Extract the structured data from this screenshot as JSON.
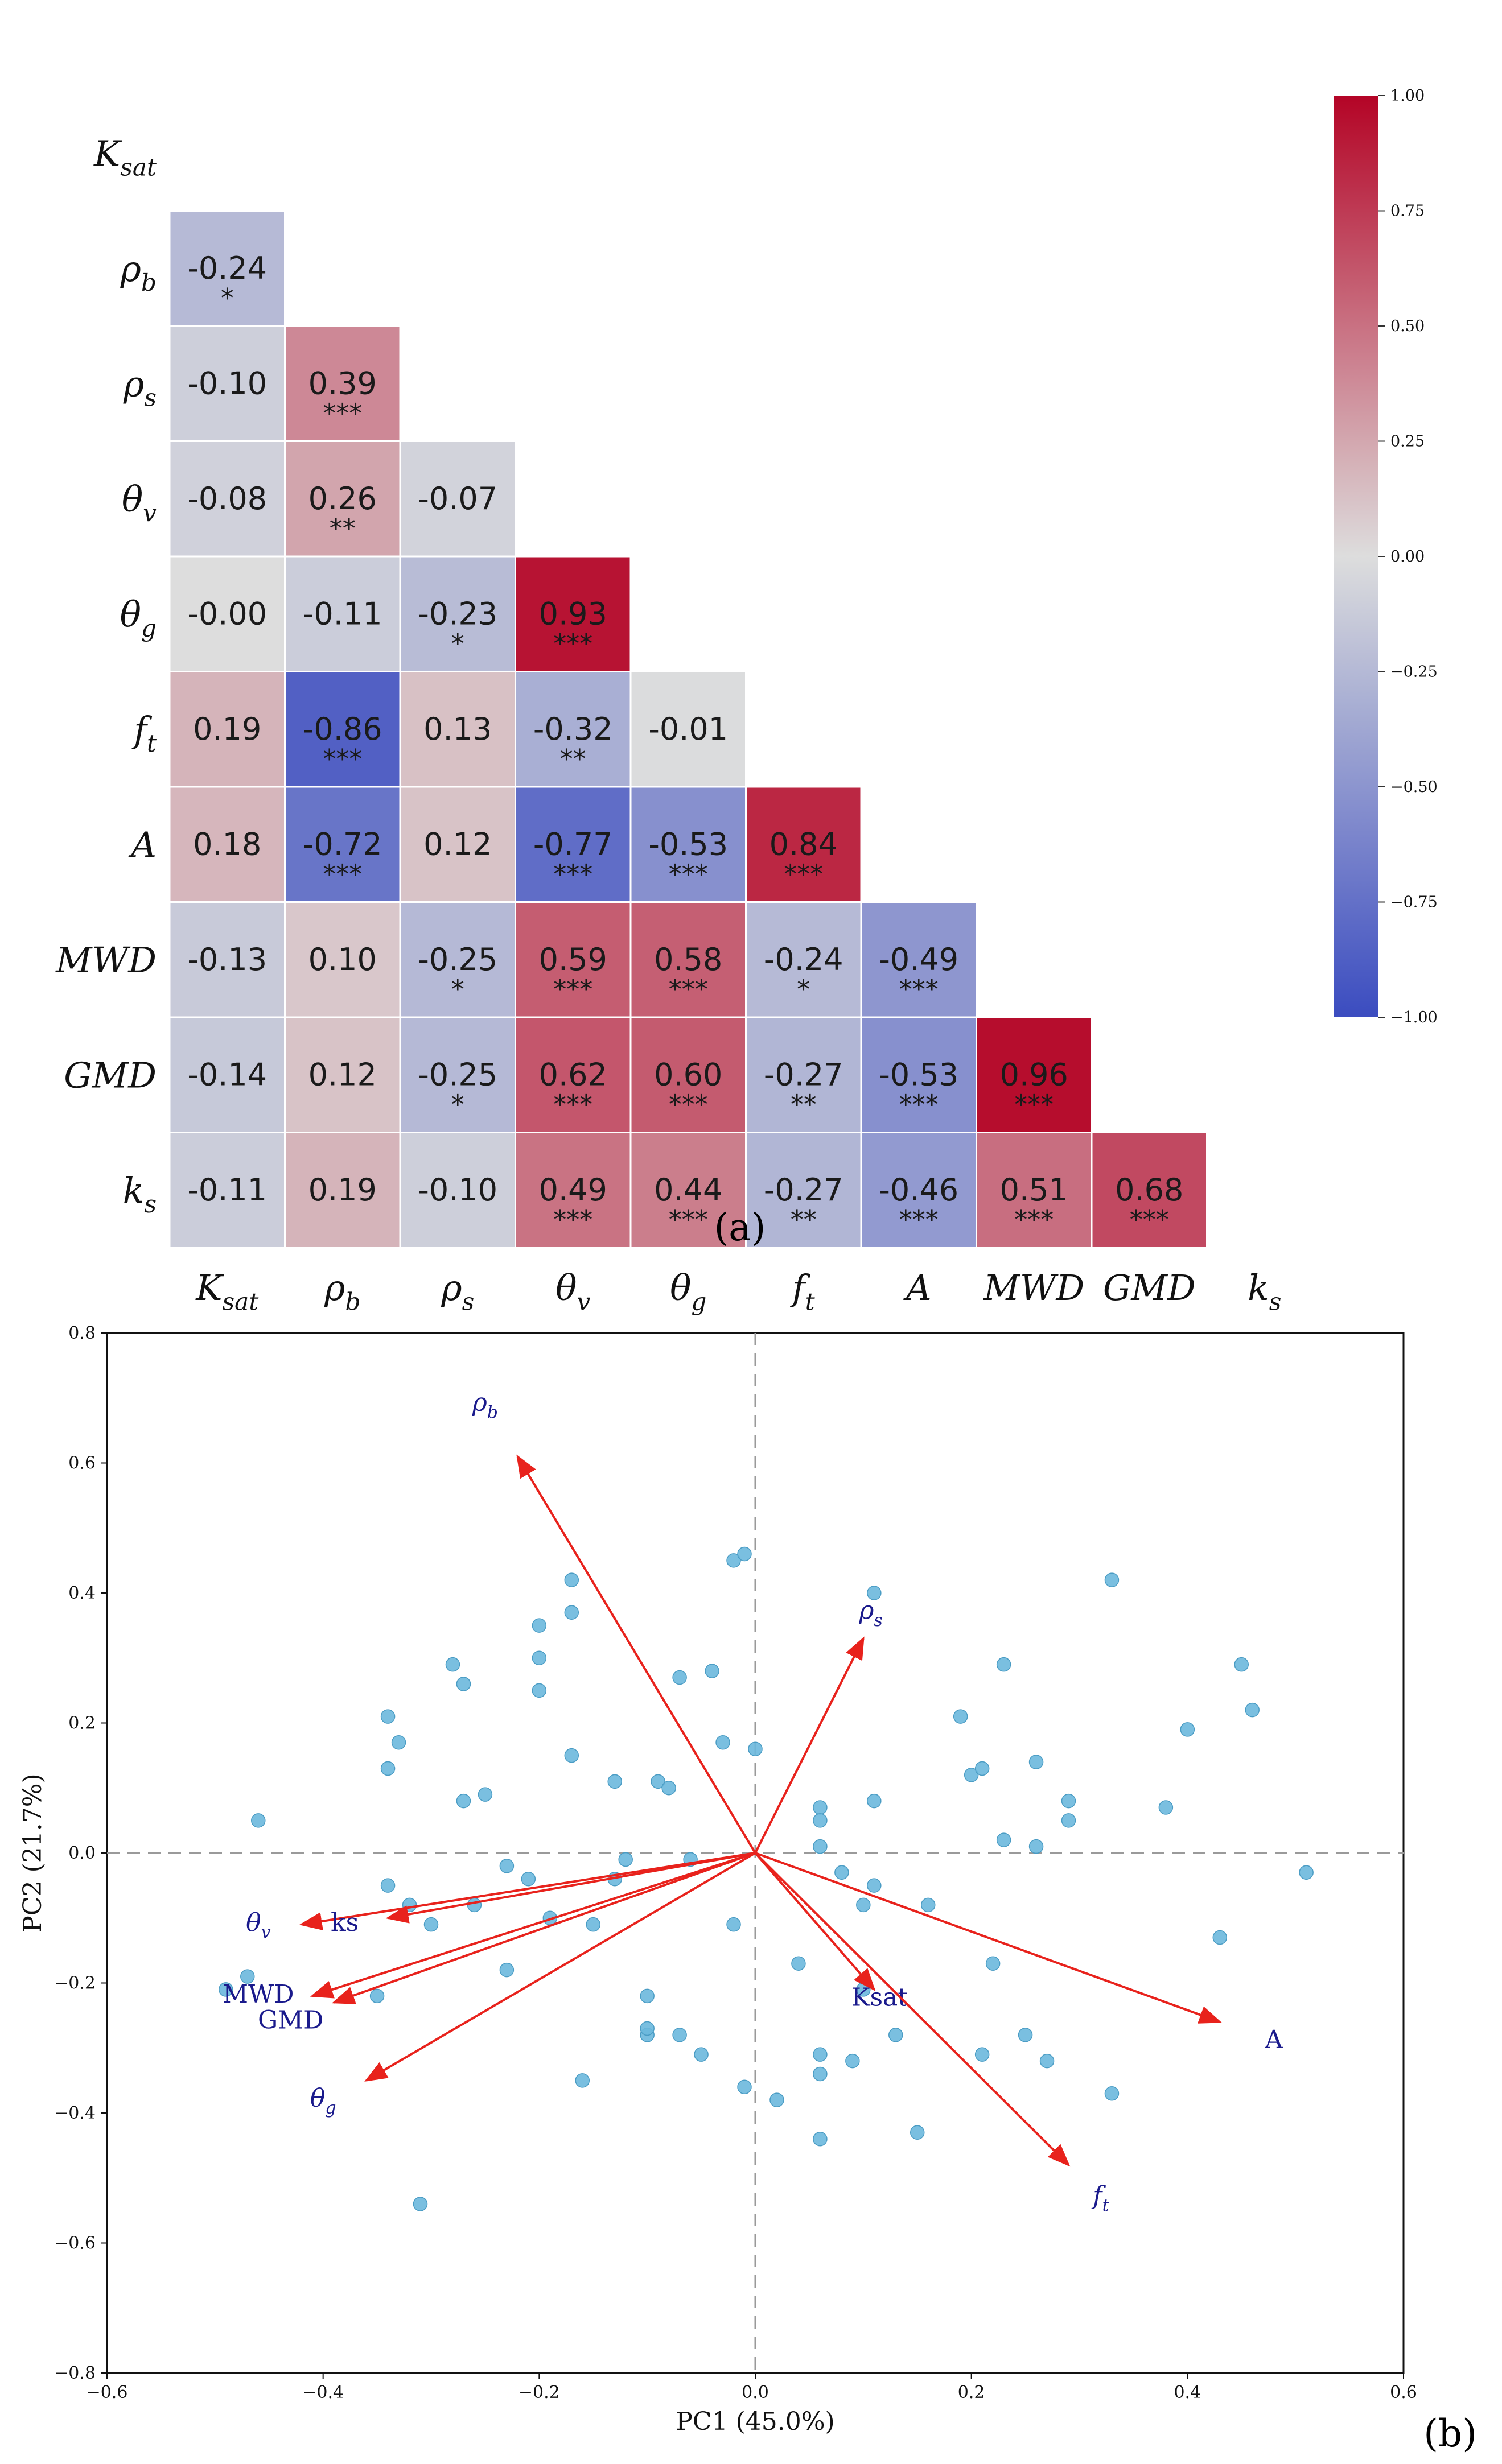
{
  "chart_data": [
    {
      "type": "heatmap",
      "variables": [
        "K_sat",
        "ρ_b",
        "ρ_s",
        "θ_v",
        "θ_g",
        "f_t",
        "A",
        "MWD",
        "GMD",
        "k_s"
      ],
      "matrix": [
        [],
        [
          -0.24
        ],
        [
          -0.1,
          0.39
        ],
        [
          -0.08,
          0.26,
          -0.07
        ],
        [
          -0.0,
          -0.11,
          -0.23,
          0.93
        ],
        [
          0.19,
          -0.86,
          0.13,
          -0.32,
          -0.01
        ],
        [
          0.18,
          -0.72,
          0.12,
          -0.77,
          -0.53,
          0.84
        ],
        [
          -0.13,
          0.1,
          -0.25,
          0.59,
          0.58,
          -0.24,
          -0.49
        ],
        [
          -0.14,
          0.12,
          -0.25,
          0.62,
          0.6,
          -0.27,
          -0.53,
          0.96
        ],
        [
          -0.11,
          0.19,
          -0.1,
          0.49,
          0.44,
          -0.27,
          -0.46,
          0.51,
          0.68
        ]
      ],
      "labels_text": [
        [],
        [
          "-0.24"
        ],
        [
          "-0.10",
          "0.39"
        ],
        [
          "-0.08",
          "0.26",
          "-0.07"
        ],
        [
          "-0.00",
          "-0.11",
          "-0.23",
          "0.93"
        ],
        [
          "0.19",
          "-0.86",
          "0.13",
          "-0.32",
          "-0.01"
        ],
        [
          "0.18",
          "-0.72",
          "0.12",
          "-0.77",
          "-0.53",
          "0.84"
        ],
        [
          "-0.13",
          "0.10",
          "-0.25",
          "0.59",
          "0.58",
          "-0.24",
          "-0.49"
        ],
        [
          "-0.14",
          "0.12",
          "-0.25",
          "0.62",
          "0.60",
          "-0.27",
          "-0.53",
          "0.96"
        ],
        [
          "-0.11",
          "0.19",
          "-0.10",
          "0.49",
          "0.44",
          "-0.27",
          "-0.46",
          "0.51",
          "0.68"
        ]
      ],
      "significance": [
        [],
        [
          "*"
        ],
        [
          "",
          "***"
        ],
        [
          "",
          "**",
          ""
        ],
        [
          "",
          "",
          "*",
          "***"
        ],
        [
          "",
          "***",
          "",
          "**",
          ""
        ],
        [
          "",
          "***",
          "",
          "***",
          "***",
          "***"
        ],
        [
          "",
          "",
          "*",
          "***",
          "***",
          "*",
          "***"
        ],
        [
          "",
          "",
          "*",
          "***",
          "***",
          "**",
          "***",
          "***"
        ],
        [
          "",
          "",
          "",
          "***",
          "***",
          "**",
          "***",
          "***",
          "***"
        ]
      ],
      "colorbar": {
        "range": [
          -1.0,
          1.0
        ],
        "ticks": [
          "1.00",
          "0.75",
          "0.50",
          "0.25",
          "0.00",
          "−0.25",
          "−0.50",
          "−0.75",
          "−1.00"
        ],
        "tick_values": [
          1.0,
          0.75,
          0.5,
          0.25,
          0.0,
          -0.25,
          -0.5,
          -0.75,
          -1.0
        ],
        "colormap": "coolwarm",
        "color_low": "#3b4cc0",
        "color_mid": "#dddddd",
        "color_high": "#b40426"
      },
      "panel_label": "(a)"
    },
    {
      "type": "scatter",
      "xlabel": "PC1 (45.0%)",
      "ylabel": "PC2 (21.7%)",
      "xlim": [
        -0.6,
        0.6
      ],
      "ylim": [
        -0.8,
        0.8
      ],
      "xticks": [
        "−0.6",
        "−0.4",
        "−0.2",
        "0.0",
        "0.2",
        "0.4",
        "0.6"
      ],
      "xtick_values": [
        -0.6,
        -0.4,
        -0.2,
        0.0,
        0.2,
        0.4,
        0.6
      ],
      "yticks": [
        "0.8",
        "0.6",
        "0.4",
        "0.2",
        "0.0",
        "−0.2",
        "−0.4",
        "−0.6",
        "−0.8"
      ],
      "ytick_values": [
        0.8,
        0.6,
        0.4,
        0.2,
        0.0,
        -0.2,
        -0.4,
        -0.6,
        -0.8
      ],
      "point_color": "#6bb8dd",
      "arrow_color": "#e8221c",
      "reference_lines": "dashed at x=0 and y=0",
      "points": [
        [
          -0.49,
          -0.21
        ],
        [
          -0.47,
          -0.19
        ],
        [
          -0.46,
          0.05
        ],
        [
          -0.35,
          -0.22
        ],
        [
          -0.34,
          -0.05
        ],
        [
          -0.34,
          0.21
        ],
        [
          -0.33,
          0.17
        ],
        [
          -0.34,
          0.13
        ],
        [
          -0.32,
          -0.08
        ],
        [
          -0.31,
          -0.54
        ],
        [
          -0.3,
          -0.11
        ],
        [
          -0.28,
          0.29
        ],
        [
          -0.27,
          0.26
        ],
        [
          -0.27,
          0.08
        ],
        [
          -0.26,
          -0.08
        ],
        [
          -0.25,
          0.09
        ],
        [
          -0.23,
          -0.02
        ],
        [
          -0.23,
          -0.18
        ],
        [
          -0.21,
          -0.04
        ],
        [
          -0.2,
          0.35
        ],
        [
          -0.2,
          0.3
        ],
        [
          -0.2,
          0.25
        ],
        [
          -0.19,
          -0.1
        ],
        [
          -0.17,
          0.42
        ],
        [
          -0.17,
          0.37
        ],
        [
          -0.16,
          -0.35
        ],
        [
          -0.17,
          0.15
        ],
        [
          -0.15,
          -0.11
        ],
        [
          -0.13,
          -0.04
        ],
        [
          -0.13,
          0.11
        ],
        [
          -0.12,
          -0.01
        ],
        [
          -0.1,
          -0.22
        ],
        [
          -0.1,
          -0.28
        ],
        [
          -0.1,
          -0.27
        ],
        [
          -0.09,
          0.11
        ],
        [
          -0.08,
          0.1
        ],
        [
          -0.07,
          -0.28
        ],
        [
          -0.07,
          0.27
        ],
        [
          -0.06,
          -0.01
        ],
        [
          -0.05,
          -0.31
        ],
        [
          -0.04,
          0.28
        ],
        [
          -0.03,
          0.17
        ],
        [
          -0.02,
          -0.11
        ],
        [
          -0.02,
          0.45
        ],
        [
          -0.01,
          -0.36
        ],
        [
          -0.01,
          0.46
        ],
        [
          0.0,
          0.16
        ],
        [
          0.02,
          -0.38
        ],
        [
          0.04,
          -0.17
        ],
        [
          0.06,
          0.07
        ],
        [
          0.06,
          0.05
        ],
        [
          0.06,
          -0.34
        ],
        [
          0.06,
          -0.44
        ],
        [
          0.06,
          0.01
        ],
        [
          0.06,
          -0.31
        ],
        [
          0.08,
          -0.03
        ],
        [
          0.09,
          -0.32
        ],
        [
          0.1,
          -0.21
        ],
        [
          0.1,
          -0.08
        ],
        [
          0.11,
          -0.05
        ],
        [
          0.11,
          0.4
        ],
        [
          0.11,
          0.08
        ],
        [
          0.13,
          -0.28
        ],
        [
          0.15,
          -0.43
        ],
        [
          0.16,
          -0.08
        ],
        [
          0.19,
          0.21
        ],
        [
          0.2,
          0.12
        ],
        [
          0.21,
          0.13
        ],
        [
          0.21,
          -0.31
        ],
        [
          0.22,
          -0.17
        ],
        [
          0.23,
          0.29
        ],
        [
          0.23,
          0.02
        ],
        [
          0.25,
          -0.28
        ],
        [
          0.26,
          0.14
        ],
        [
          0.26,
          0.01
        ],
        [
          0.27,
          -0.32
        ],
        [
          0.29,
          0.08
        ],
        [
          0.29,
          0.05
        ],
        [
          0.33,
          0.42
        ],
        [
          0.33,
          -0.37
        ],
        [
          0.38,
          0.07
        ],
        [
          0.4,
          0.19
        ],
        [
          0.43,
          -0.13
        ],
        [
          0.45,
          0.29
        ],
        [
          0.46,
          0.22
        ],
        [
          0.51,
          -0.03
        ]
      ],
      "vectors": [
        {
          "label": "ρ_b",
          "x": -0.22,
          "y": 0.61,
          "italic": true,
          "label_x": -0.25,
          "label_y": 0.68
        },
        {
          "label": "ρ_s",
          "x": 0.1,
          "y": 0.33,
          "italic": true,
          "label_x": 0.107,
          "label_y": 0.36
        },
        {
          "label": "θ_v",
          "x": -0.42,
          "y": -0.11,
          "italic": true,
          "label_x": -0.46,
          "label_y": -0.12
        },
        {
          "label": "ks",
          "x": -0.34,
          "y": -0.1,
          "italic": false,
          "label_x": -0.38,
          "label_y": -0.12
        },
        {
          "label": "MWD",
          "x": -0.41,
          "y": -0.22,
          "italic": false,
          "label_x": -0.46,
          "label_y": -0.23
        },
        {
          "label": "GMD",
          "x": -0.39,
          "y": -0.23,
          "italic": false,
          "label_x": -0.43,
          "label_y": -0.27
        },
        {
          "label": "θ_g",
          "x": -0.36,
          "y": -0.35,
          "italic": true,
          "label_x": -0.4,
          "label_y": -0.39
        },
        {
          "label": "Ksat",
          "x": 0.11,
          "y": -0.21,
          "italic": false,
          "label_x": 0.115,
          "label_y": -0.235
        },
        {
          "label": "A",
          "x": 0.43,
          "y": -0.26,
          "italic": false,
          "label_x": 0.48,
          "label_y": -0.3
        },
        {
          "label": "f_t",
          "x": 0.29,
          "y": -0.48,
          "italic": true,
          "label_x": 0.32,
          "label_y": -0.54
        }
      ],
      "panel_label": "(b)"
    }
  ]
}
